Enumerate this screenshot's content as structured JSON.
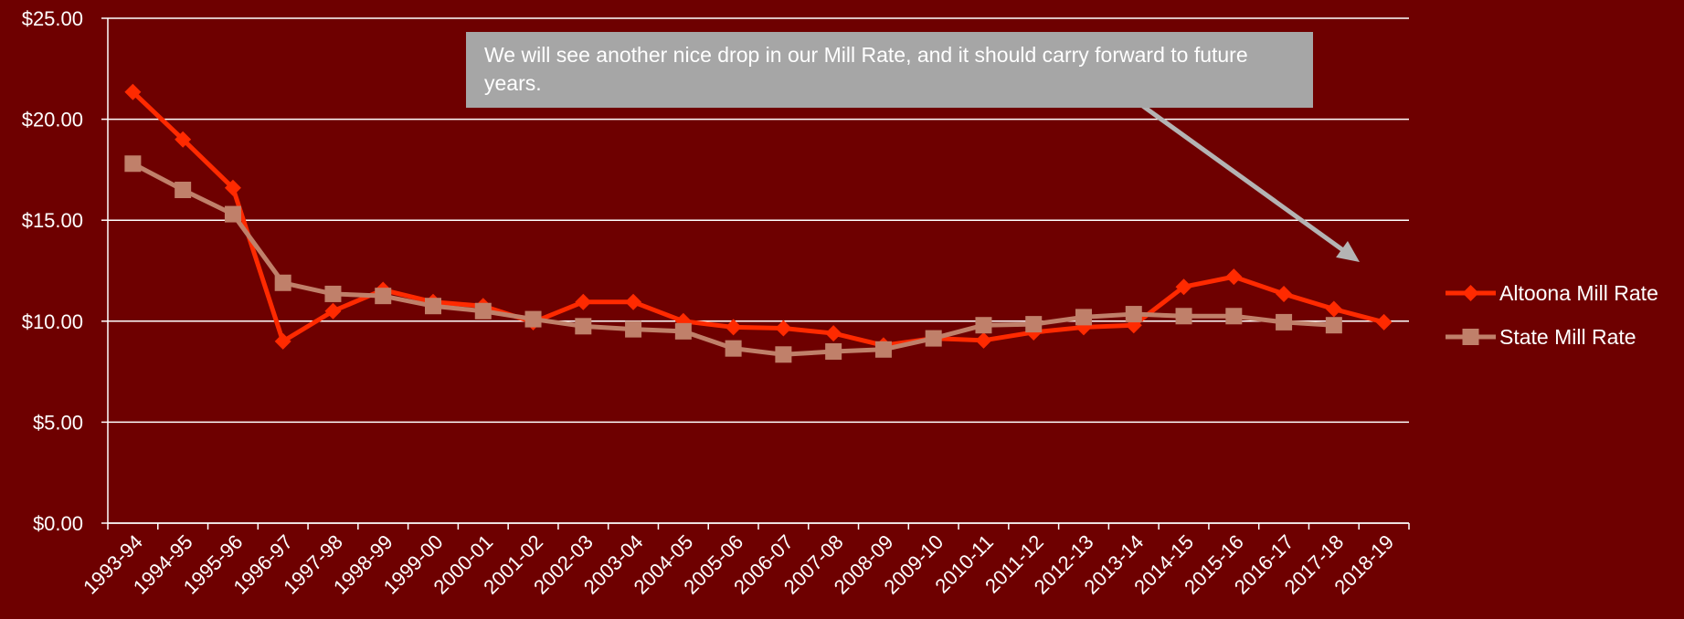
{
  "colors": {
    "background": "#6e0000",
    "gridline": "#ffffff",
    "altoona": "#ff2a00",
    "state": "#c0806a",
    "callout_bg": "#a6a6a6",
    "arrow": "#b4b4b4"
  },
  "annotation": {
    "text": "We will see another nice drop in our Mill Rate, and it should carry forward to future years."
  },
  "chart_data": {
    "type": "line",
    "categories": [
      "1993-94",
      "1994-95",
      "1995-96",
      "1996-97",
      "1997-98",
      "1998-99",
      "1999-00",
      "2000-01",
      "2001-02",
      "2002-03",
      "2003-04",
      "2004-05",
      "2005-06",
      "2006-07",
      "2007-08",
      "2008-09",
      "2009-10",
      "2010-11",
      "2011-12",
      "2012-13",
      "2013-14",
      "2014-15",
      "2015-16",
      "2016-17",
      "2017-18",
      "2018-19"
    ],
    "series": [
      {
        "name": "Altoona Mill Rate",
        "marker": "diamond",
        "values": [
          21.35,
          19.0,
          16.6,
          9.0,
          10.5,
          11.55,
          10.95,
          10.75,
          9.95,
          10.95,
          10.95,
          10.0,
          9.7,
          9.65,
          9.4,
          8.8,
          9.15,
          9.05,
          9.45,
          9.7,
          9.8,
          11.7,
          12.2,
          11.35,
          10.6,
          9.95
        ]
      },
      {
        "name": "State Mill Rate",
        "marker": "square",
        "values": [
          17.8,
          16.5,
          15.3,
          11.9,
          11.35,
          11.25,
          10.75,
          10.5,
          10.1,
          9.75,
          9.6,
          9.5,
          8.65,
          8.35,
          8.5,
          8.6,
          9.15,
          9.8,
          9.85,
          10.2,
          10.35,
          10.25,
          10.25,
          9.95,
          9.8,
          null
        ]
      }
    ],
    "y_ticks": [
      "$0.00",
      "$5.00",
      "$10.00",
      "$15.00",
      "$20.00",
      "$25.00"
    ],
    "ylim": [
      0,
      25
    ],
    "y_tick_values": [
      0,
      5,
      10,
      15,
      20,
      25
    ],
    "grid": true,
    "legend_position": "right"
  }
}
